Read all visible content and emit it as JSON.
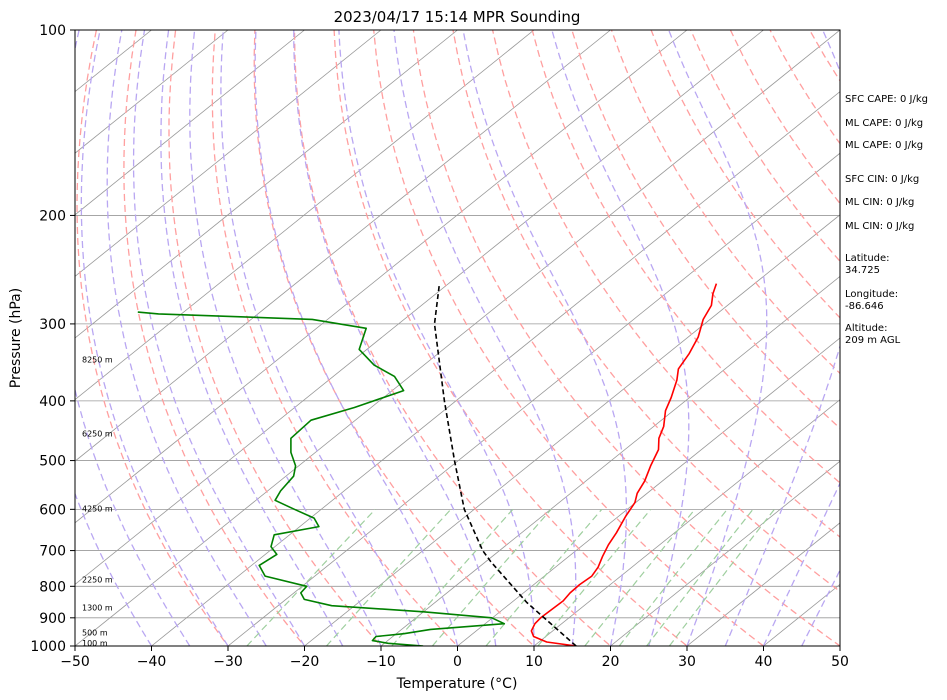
{
  "chart_data": {
    "type": "line",
    "title": "2023/04/17 15:14 MPR Sounding",
    "xlabel": "Temperature (°C)",
    "ylabel": "Pressure (hPa)",
    "xlim": [
      -50,
      50
    ],
    "ylim": [
      1000,
      100
    ],
    "y_scale": "log",
    "xticks": [
      -50,
      -40,
      -30,
      -20,
      -10,
      0,
      10,
      20,
      30,
      40,
      50
    ],
    "xtick_labels": [
      "−50",
      "−40",
      "−30",
      "−20",
      "−10",
      "0",
      "10",
      "20",
      "30",
      "40",
      "50"
    ],
    "yticks": [
      1000,
      900,
      800,
      700,
      600,
      500,
      400,
      300,
      200,
      100
    ],
    "ytick_labels": [
      "1000",
      "900",
      "800",
      "700",
      "600",
      "500",
      "400",
      "300",
      "200",
      "100"
    ],
    "skew": 1,
    "grid": true,
    "series": [
      {
        "kind": "temperature",
        "color": "#ff0000",
        "points": [
          [
            1000,
            15.5
          ],
          [
            985,
            11
          ],
          [
            965,
            8.4
          ],
          [
            945,
            7.2
          ],
          [
            920,
            6.5
          ],
          [
            900,
            6.3
          ],
          [
            870,
            6.4
          ],
          [
            845,
            6.5
          ],
          [
            820,
            6.1
          ],
          [
            795,
            6.0
          ],
          [
            770,
            6.2
          ],
          [
            745,
            5.6
          ],
          [
            715,
            4.4
          ],
          [
            685,
            3.3
          ],
          [
            655,
            2.4
          ],
          [
            615,
            0.9
          ],
          [
            585,
            -0.1
          ],
          [
            565,
            -1.3
          ],
          [
            540,
            -2.3
          ],
          [
            510,
            -4.0
          ],
          [
            480,
            -5.6
          ],
          [
            460,
            -7.4
          ],
          [
            440,
            -8.7
          ],
          [
            415,
            -11.0
          ],
          [
            395,
            -12.4
          ],
          [
            370,
            -14.5
          ],
          [
            355,
            -16.1
          ],
          [
            335,
            -17.2
          ],
          [
            315,
            -18.7
          ],
          [
            295,
            -20.9
          ],
          [
            280,
            -22.1
          ],
          [
            268,
            -23.8
          ],
          [
            258,
            -25.0
          ]
        ]
      },
      {
        "kind": "dewpoint",
        "color": "#008000",
        "points": [
          [
            1000,
            -4.5
          ],
          [
            990,
            -9.5
          ],
          [
            980,
            -12.0
          ],
          [
            965,
            -12.2
          ],
          [
            955,
            -9.0
          ],
          [
            940,
            -6.2
          ],
          [
            920,
            2.5
          ],
          [
            900,
            -0.1
          ],
          [
            880,
            -10.0
          ],
          [
            860,
            -23.0
          ],
          [
            840,
            -27.6
          ],
          [
            820,
            -29.1
          ],
          [
            800,
            -29.4
          ],
          [
            770,
            -36.5
          ],
          [
            740,
            -39.0
          ],
          [
            710,
            -38.5
          ],
          [
            690,
            -40.5
          ],
          [
            660,
            -42.0
          ],
          [
            640,
            -37.5
          ],
          [
            620,
            -39.5
          ],
          [
            600,
            -43.5
          ],
          [
            580,
            -47.5
          ],
          [
            560,
            -48.3
          ],
          [
            530,
            -49.0
          ],
          [
            510,
            -50.4
          ],
          [
            485,
            -53.2
          ],
          [
            460,
            -55.5
          ],
          [
            430,
            -55.8
          ],
          [
            410,
            -52.2
          ],
          [
            385,
            -48.5
          ],
          [
            365,
            -52.0
          ],
          [
            350,
            -56.5
          ],
          [
            330,
            -61.0
          ],
          [
            305,
            -63.5
          ],
          [
            295,
            -72.0
          ],
          [
            289,
            -93.0
          ],
          [
            287,
            -96.0
          ]
        ]
      },
      {
        "kind": "parcel",
        "color": "#000000",
        "dashed": true,
        "points": [
          [
            1000,
            15.5
          ],
          [
            850,
            2.0
          ],
          [
            800,
            -2.5
          ],
          [
            730,
            -9.3
          ],
          [
            700,
            -12.2
          ],
          [
            600,
            -21.3
          ],
          [
            500,
            -30.5
          ],
          [
            400,
            -41.5
          ],
          [
            300,
            -55.3
          ],
          [
            260,
            -60.9
          ]
        ]
      }
    ],
    "height_labels": [
      "8250 m",
      "6250 m",
      "4250 m",
      "2250 m",
      "1300 m",
      "500 m",
      "100 m"
    ],
    "height_label_pressures": [
      343,
      452,
      598,
      780,
      866,
      950,
      988
    ]
  },
  "info_panel": [
    "SFC CAPE: 0 J/kg",
    "ML CAPE: 0 J/kg",
    "ML CAPE: 0 J/kg",
    "SFC CIN: 0 J/kg",
    "ML CIN: 0 J/kg",
    "ML CIN: 0 J/kg",
    "Latitude:",
    "34.725",
    "Longitude:",
    "-86.646",
    "Altitude:",
    "209 m AGL"
  ],
  "colors": {
    "temperature": "#ff0000",
    "dewpoint": "#008000",
    "parcel": "#000000",
    "dry_adiabat": "#ff9f9f",
    "moist_adiabat": "#b9a7f2",
    "mixing_ratio": "#9fcf9f",
    "isotherm": "#999999"
  }
}
